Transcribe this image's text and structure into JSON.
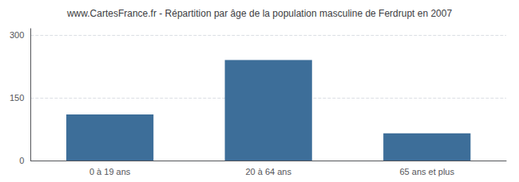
{
  "chart_data": {
    "type": "bar",
    "title": "www.CartesFrance.fr - Répartition par âge de la population masculine de Ferdrupt en 2007",
    "categories": [
      "0 à 19 ans",
      "20 à 64 ans",
      "65 ans et plus"
    ],
    "values": [
      110,
      240,
      65
    ],
    "color": "#3d6e99",
    "ylim": [
      0,
      315
    ],
    "yticks": [
      0,
      150,
      300
    ],
    "grid": true
  }
}
